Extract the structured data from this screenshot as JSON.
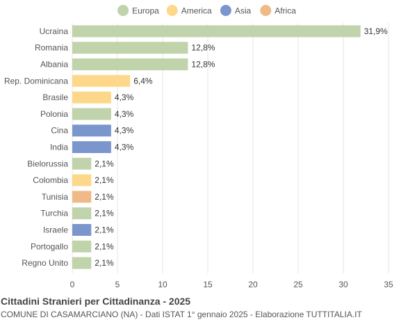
{
  "chart_data": {
    "type": "bar",
    "orientation": "horizontal",
    "title": "Cittadini Stranieri per Cittadinanza - 2025",
    "subtitle": "COMUNE DI CASAMARCIANO (NA) - Dati ISTAT 1° gennaio 2025 - Elaborazione TUTTITALIA.IT",
    "legend_position": "top-center",
    "grid": true,
    "xlim": [
      0,
      35
    ],
    "xticks": [
      0,
      5,
      10,
      15,
      20,
      25,
      30,
      35
    ],
    "legend": [
      {
        "name": "Europa",
        "color": "#c0d3aa"
      },
      {
        "name": "America",
        "color": "#fed88a"
      },
      {
        "name": "Asia",
        "color": "#7b96cd"
      },
      {
        "name": "Africa",
        "color": "#f0ba88"
      }
    ],
    "categories": [
      "Ucraina",
      "Romania",
      "Albania",
      "Rep. Dominicana",
      "Brasile",
      "Polonia",
      "Cina",
      "India",
      "Bielorussia",
      "Colombia",
      "Tunisia",
      "Turchia",
      "Israele",
      "Portogallo",
      "Regno Unito"
    ],
    "values": [
      31.9,
      12.8,
      12.8,
      6.4,
      4.3,
      4.3,
      4.3,
      4.3,
      2.1,
      2.1,
      2.1,
      2.1,
      2.1,
      2.1,
      2.1
    ],
    "value_labels": [
      "31,9%",
      "12,8%",
      "12,8%",
      "6,4%",
      "4,3%",
      "4,3%",
      "4,3%",
      "4,3%",
      "2,1%",
      "2,1%",
      "2,1%",
      "2,1%",
      "2,1%",
      "2,1%",
      "2,1%"
    ],
    "groups": [
      "Europa",
      "Europa",
      "Europa",
      "America",
      "America",
      "Europa",
      "Asia",
      "Asia",
      "Europa",
      "America",
      "Africa",
      "Europa",
      "Asia",
      "Europa",
      "Europa"
    ]
  }
}
